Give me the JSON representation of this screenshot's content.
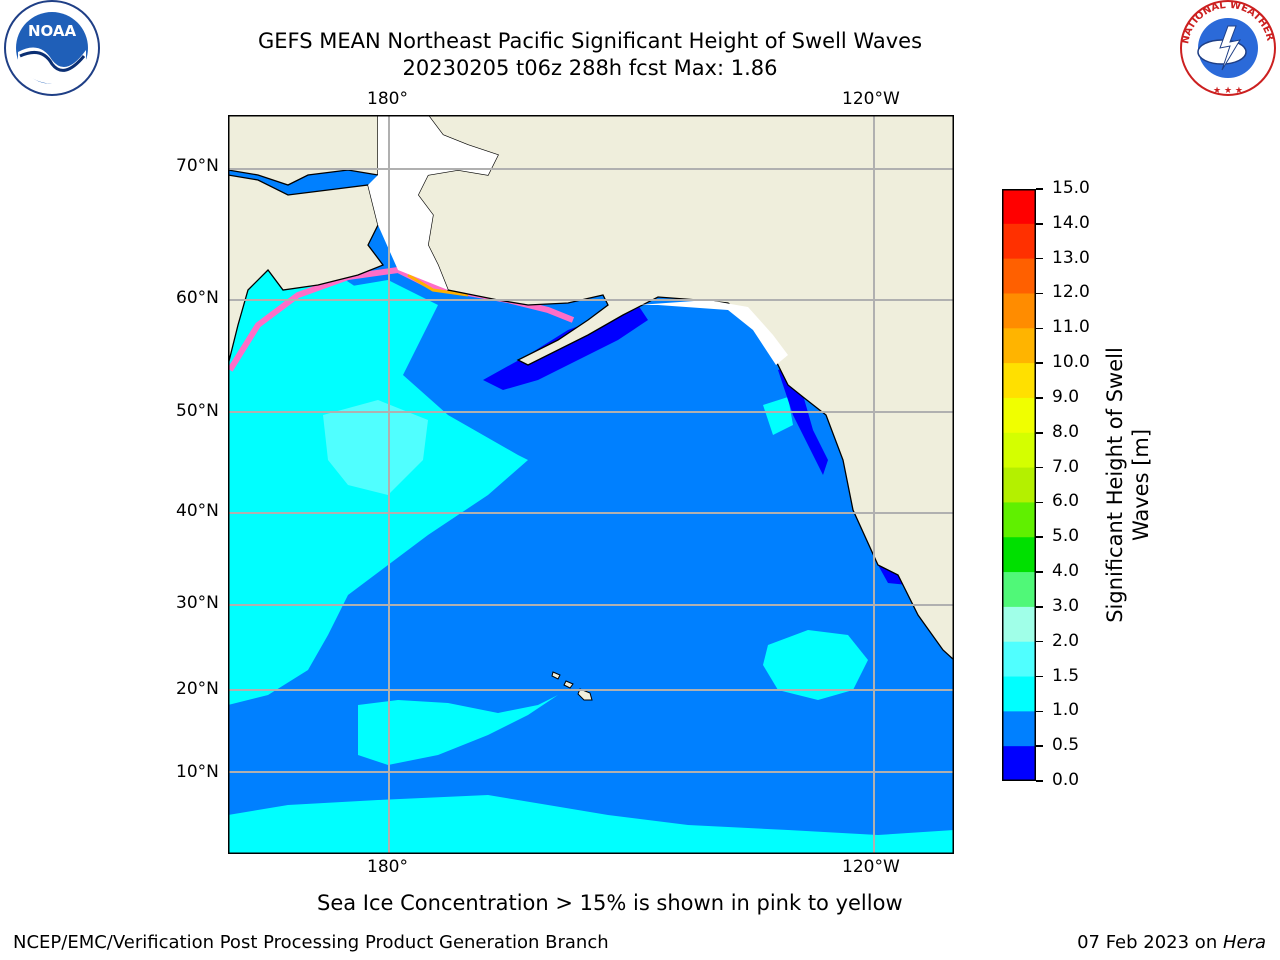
{
  "title": {
    "line1": "GEFS MEAN Northeast Pacific Significant Height of Swell Waves",
    "line2": "20230205 t06z 288h fcst   Max: 1.86"
  },
  "logos": {
    "noaa_text": "NOAA",
    "nws_ring": "NATIONAL WEATHER SERVICE"
  },
  "map": {
    "lon_labels": [
      "180°",
      "120°W"
    ],
    "lat_labels": [
      "70°N",
      "60°N",
      "50°N",
      "40°N",
      "30°N",
      "20°N",
      "10°N"
    ],
    "colors": {
      "land": "#efeedc",
      "ocean_main": "#0080ff",
      "ocean_light": "#00ffff",
      "ocean_lighter": "#50ffff",
      "ocean_low": "#0000ff",
      "grid": "#b0b0b0",
      "ice_pink": "#ff6ec7",
      "ice_orange": "#ffb000"
    }
  },
  "colorbar": {
    "label_line1": "Significant Height of Swell",
    "label_line2": "Waves [m]",
    "ticks": [
      "15.0",
      "14.0",
      "13.0",
      "12.0",
      "11.0",
      "10.0",
      "9.0",
      "8.0",
      "7.0",
      "6.0",
      "5.0",
      "4.0",
      "3.0",
      "2.0",
      "1.5",
      "1.0",
      "0.5",
      "0.0"
    ],
    "colors": [
      "#ff0000",
      "#ff3000",
      "#ff6000",
      "#ff8c00",
      "#ffb400",
      "#ffe000",
      "#f0ff00",
      "#d4ff00",
      "#b4f000",
      "#60f000",
      "#00e000",
      "#50f878",
      "#a0ffe8",
      "#50ffff",
      "#00ffff",
      "#0080ff",
      "#0000ff"
    ]
  },
  "note": "Sea Ice Concentration > 15% is shown in pink to yellow",
  "footer": {
    "left": "NCEP/EMC/Verification Post Processing Product Generation Branch",
    "date": "07 Feb 2023 on ",
    "system": "Hera"
  }
}
